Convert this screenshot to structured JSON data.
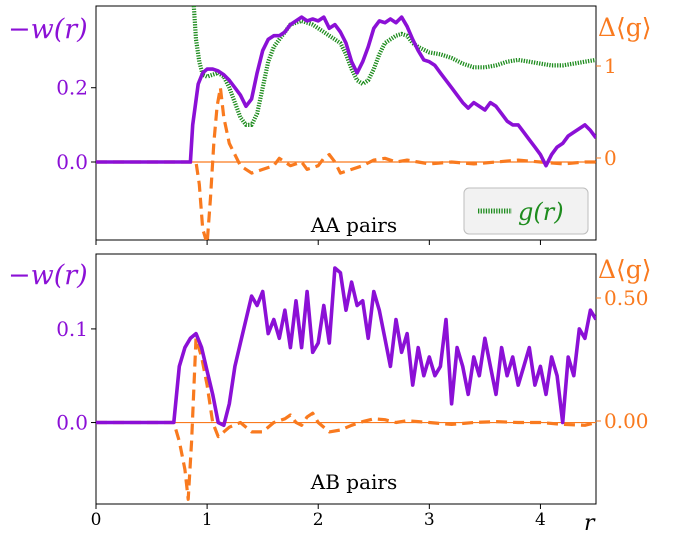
{
  "colors": {
    "w_line": "#8b10d6",
    "delta_g": "#f97a1f",
    "g_r": "#1e8c1e",
    "axis": "#000000"
  },
  "chart_data": [
    {
      "type": "line",
      "annotation": "AA pairs",
      "left_axis": {
        "label": "−w(r)",
        "ticks": [
          "0.0",
          "0.2"
        ],
        "tick_values": [
          0.0,
          0.2
        ],
        "ylim": [
          -0.21,
          0.42
        ]
      },
      "right_axis": {
        "label": "Δ⟨g⟩",
        "ticks": [
          "0",
          "1"
        ],
        "tick_values": [
          0,
          1
        ]
      },
      "legend": {
        "placement": "bottom-right",
        "entries": [
          "g(r)"
        ]
      },
      "grid": false,
      "series": [
        {
          "key": "w",
          "axis": "left",
          "style": "solid",
          "x": [
            0.0,
            0.85,
            0.87,
            0.92,
            0.96,
            1.0,
            1.05,
            1.1,
            1.15,
            1.2,
            1.25,
            1.3,
            1.35,
            1.4,
            1.45,
            1.5,
            1.55,
            1.6,
            1.65,
            1.7,
            1.75,
            1.8,
            1.85,
            1.9,
            1.95,
            2.0,
            2.05,
            2.1,
            2.15,
            2.2,
            2.25,
            2.3,
            2.35,
            2.4,
            2.45,
            2.5,
            2.55,
            2.6,
            2.65,
            2.7,
            2.75,
            2.8,
            2.85,
            2.9,
            2.95,
            3.0,
            3.05,
            3.1,
            3.15,
            3.2,
            3.25,
            3.3,
            3.35,
            3.4,
            3.45,
            3.5,
            3.55,
            3.6,
            3.65,
            3.7,
            3.75,
            3.8,
            3.85,
            3.9,
            3.95,
            4.0,
            4.05,
            4.1,
            4.15,
            4.2,
            4.25,
            4.3,
            4.35,
            4.4,
            4.45,
            4.5
          ],
          "y": [
            0.0,
            0.0,
            0.1,
            0.21,
            0.24,
            0.25,
            0.25,
            0.245,
            0.235,
            0.22,
            0.2,
            0.18,
            0.15,
            0.17,
            0.24,
            0.3,
            0.33,
            0.34,
            0.34,
            0.35,
            0.37,
            0.38,
            0.39,
            0.38,
            0.385,
            0.38,
            0.39,
            0.36,
            0.37,
            0.35,
            0.32,
            0.27,
            0.24,
            0.27,
            0.31,
            0.36,
            0.38,
            0.375,
            0.385,
            0.375,
            0.39,
            0.365,
            0.33,
            0.3,
            0.275,
            0.27,
            0.26,
            0.24,
            0.22,
            0.2,
            0.18,
            0.16,
            0.145,
            0.16,
            0.15,
            0.14,
            0.16,
            0.15,
            0.13,
            0.11,
            0.1,
            0.1,
            0.08,
            0.06,
            0.04,
            0.02,
            -0.01,
            0.02,
            0.04,
            0.05,
            0.07,
            0.08,
            0.09,
            0.1,
            0.085,
            0.065
          ]
        },
        {
          "key": "dg",
          "axis": "left",
          "style": "dashed",
          "x": [
            0.0,
            0.9,
            0.93,
            0.96,
            1.0,
            1.03,
            1.06,
            1.09,
            1.12,
            1.15,
            1.2,
            1.25,
            1.3,
            1.4,
            1.5,
            1.6,
            1.65,
            1.7,
            1.75,
            1.8,
            1.85,
            1.9,
            2.0,
            2.05,
            2.1,
            2.15,
            2.2,
            2.3,
            2.4,
            2.5,
            2.6,
            2.7,
            2.8,
            2.9,
            3.0,
            3.2,
            3.4,
            3.6,
            3.8,
            4.0,
            4.2,
            4.4,
            4.5
          ],
          "y": [
            0.0,
            0.0,
            -0.06,
            -0.18,
            -0.22,
            -0.1,
            0.05,
            0.15,
            0.2,
            0.12,
            0.05,
            0.02,
            -0.01,
            -0.03,
            -0.02,
            -0.01,
            0.01,
            0.0,
            -0.01,
            -0.005,
            0.0,
            -0.02,
            -0.01,
            0.01,
            0.02,
            0.0,
            -0.03,
            -0.02,
            -0.01,
            0.005,
            0.01,
            0.0,
            0.005,
            0.0,
            -0.005,
            0.0,
            -0.005,
            0.0,
            0.005,
            0.0,
            -0.005,
            0.0,
            0.0
          ]
        },
        {
          "key": "g",
          "axis": "left",
          "style": "dotted",
          "name": "g(r)",
          "x": [
            0.88,
            0.9,
            0.93,
            0.96,
            1.0,
            1.05,
            1.1,
            1.15,
            1.2,
            1.25,
            1.3,
            1.35,
            1.4,
            1.45,
            1.5,
            1.55,
            1.6,
            1.65,
            1.7,
            1.75,
            1.8,
            1.85,
            1.9,
            1.95,
            2.0,
            2.05,
            2.1,
            2.15,
            2.2,
            2.25,
            2.3,
            2.35,
            2.4,
            2.45,
            2.5,
            2.55,
            2.6,
            2.65,
            2.7,
            2.75,
            2.8,
            2.85,
            2.9,
            3.0,
            3.1,
            3.2,
            3.3,
            3.4,
            3.5,
            3.6,
            3.7,
            3.8,
            3.9,
            4.0,
            4.1,
            4.2,
            4.3,
            4.4,
            4.5
          ],
          "y": [
            0.42,
            0.33,
            0.27,
            0.235,
            0.23,
            0.235,
            0.24,
            0.23,
            0.2,
            0.16,
            0.12,
            0.1,
            0.1,
            0.13,
            0.2,
            0.27,
            0.31,
            0.33,
            0.35,
            0.37,
            0.375,
            0.38,
            0.375,
            0.37,
            0.36,
            0.35,
            0.34,
            0.33,
            0.32,
            0.29,
            0.25,
            0.22,
            0.21,
            0.22,
            0.25,
            0.29,
            0.32,
            0.33,
            0.34,
            0.345,
            0.34,
            0.32,
            0.31,
            0.295,
            0.29,
            0.28,
            0.265,
            0.255,
            0.255,
            0.26,
            0.27,
            0.275,
            0.27,
            0.265,
            0.26,
            0.26,
            0.265,
            0.27,
            0.275
          ]
        }
      ]
    },
    {
      "type": "line",
      "annotation": "AB pairs",
      "left_axis": {
        "label": "−w(r)",
        "ticks": [
          "0.0",
          "0.1"
        ],
        "tick_values": [
          0.0,
          0.1
        ],
        "ylim": [
          -0.087,
          0.18
        ]
      },
      "right_axis": {
        "label": "Δ⟨g⟩",
        "ticks": [
          "0.00",
          "0.50"
        ],
        "tick_values": [
          0.0,
          0.5
        ]
      },
      "x_axis": {
        "label": "r",
        "ticks": [
          "0",
          "1",
          "2",
          "3",
          "4"
        ],
        "tick_values": [
          0,
          1,
          2,
          3,
          4
        ],
        "xlim": [
          0,
          4.5
        ]
      },
      "grid": false,
      "series": [
        {
          "key": "w",
          "axis": "left",
          "style": "solid",
          "x": [
            0.0,
            0.7,
            0.75,
            0.8,
            0.85,
            0.9,
            0.95,
            1.0,
            1.05,
            1.1,
            1.15,
            1.2,
            1.25,
            1.3,
            1.35,
            1.4,
            1.45,
            1.5,
            1.55,
            1.6,
            1.65,
            1.7,
            1.75,
            1.8,
            1.85,
            1.9,
            1.95,
            2.0,
            2.05,
            2.1,
            2.15,
            2.2,
            2.25,
            2.3,
            2.35,
            2.4,
            2.45,
            2.5,
            2.55,
            2.6,
            2.65,
            2.7,
            2.75,
            2.8,
            2.85,
            2.9,
            2.95,
            3.0,
            3.05,
            3.1,
            3.15,
            3.2,
            3.25,
            3.3,
            3.35,
            3.4,
            3.45,
            3.5,
            3.55,
            3.6,
            3.65,
            3.7,
            3.75,
            3.8,
            3.85,
            3.9,
            3.95,
            4.0,
            4.05,
            4.1,
            4.15,
            4.2,
            4.25,
            4.3,
            4.35,
            4.4,
            4.45,
            4.5
          ],
          "y": [
            0.0,
            0.0,
            0.06,
            0.08,
            0.09,
            0.095,
            0.08,
            0.055,
            0.03,
            0.0,
            -0.003,
            0.02,
            0.06,
            0.085,
            0.11,
            0.135,
            0.125,
            0.14,
            0.095,
            0.11,
            0.09,
            0.12,
            0.08,
            0.13,
            0.08,
            0.14,
            0.075,
            0.085,
            0.125,
            0.085,
            0.165,
            0.16,
            0.12,
            0.15,
            0.125,
            0.13,
            0.09,
            0.14,
            0.12,
            0.09,
            0.06,
            0.11,
            0.075,
            0.095,
            0.04,
            0.08,
            0.05,
            0.07,
            0.05,
            0.06,
            0.11,
            0.02,
            0.08,
            0.06,
            0.03,
            0.07,
            0.05,
            0.09,
            0.06,
            0.03,
            0.08,
            0.05,
            0.07,
            0.04,
            0.06,
            0.08,
            0.04,
            0.06,
            0.03,
            0.07,
            0.05,
            0.0,
            0.07,
            0.05,
            0.1,
            0.09,
            0.12,
            0.11
          ]
        },
        {
          "key": "dg",
          "axis": "left",
          "style": "dashed",
          "x": [
            0.0,
            0.7,
            0.75,
            0.8,
            0.83,
            0.86,
            0.9,
            0.95,
            1.0,
            1.05,
            1.1,
            1.2,
            1.3,
            1.4,
            1.5,
            1.6,
            1.7,
            1.75,
            1.8,
            1.85,
            1.9,
            1.95,
            2.0,
            2.1,
            2.2,
            2.3,
            2.4,
            2.5,
            2.6,
            2.7,
            2.8,
            2.9,
            3.0,
            3.2,
            3.4,
            3.6,
            3.8,
            4.0,
            4.2,
            4.4,
            4.5
          ],
          "y": [
            0.0,
            0.0,
            -0.02,
            -0.05,
            -0.082,
            -0.02,
            0.09,
            0.07,
            0.04,
            0.0,
            -0.015,
            -0.005,
            0.0,
            -0.01,
            -0.01,
            0.0,
            0.004,
            0.008,
            0.0,
            -0.003,
            0.006,
            0.01,
            0.0,
            -0.01,
            -0.008,
            -0.003,
            0.001,
            0.004,
            0.003,
            0.0,
            0.002,
            0.001,
            0.0,
            -0.002,
            0.0,
            0.001,
            0.0,
            0.0,
            -0.002,
            -0.003,
            0.0
          ]
        }
      ]
    }
  ]
}
